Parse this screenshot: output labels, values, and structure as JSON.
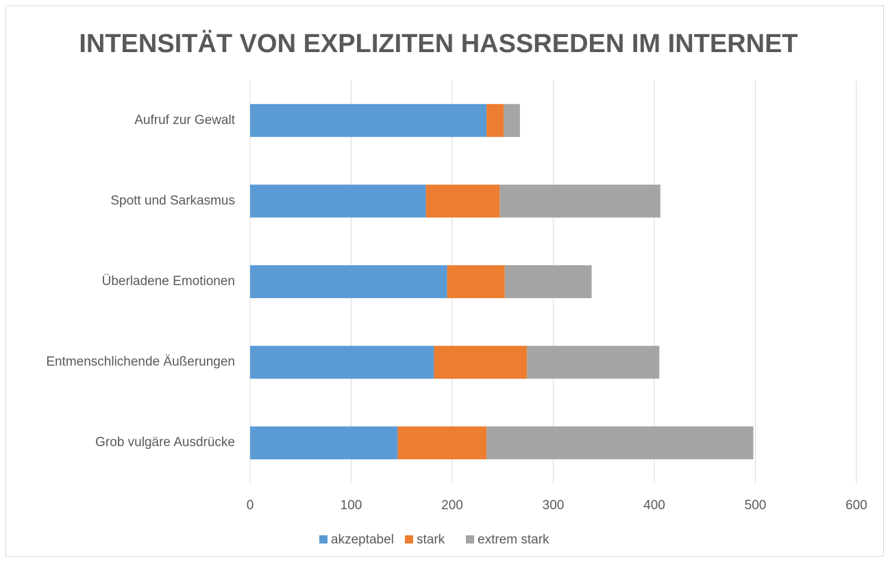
{
  "chart_data": {
    "type": "bar",
    "orientation": "horizontal",
    "stacked": true,
    "title": "INTENSITÄT VON EXPLIZITEN HASSREDEN IM INTERNET",
    "categories": [
      "Aufruf zur Gewalt",
      "Spott und Sarkasmus",
      "Überladene Emotionen",
      "Entmenschlichende Äußerungen",
      "Grob vulgäre Ausdrücke"
    ],
    "series": [
      {
        "name": "akzeptabel",
        "color": "#5b9bd5",
        "values": [
          234,
          174,
          195,
          182,
          146
        ]
      },
      {
        "name": "stark",
        "color": "#ed7d31",
        "values": [
          17,
          73,
          57,
          92,
          88
        ]
      },
      {
        "name": "extrem stark",
        "color": "#a5a5a5",
        "values": [
          16,
          159,
          86,
          131,
          264
        ]
      }
    ],
    "xlim": [
      0,
      600
    ],
    "xticks": [
      0,
      100,
      200,
      300,
      400,
      500,
      600
    ],
    "grid": true,
    "legend": "bottom"
  }
}
